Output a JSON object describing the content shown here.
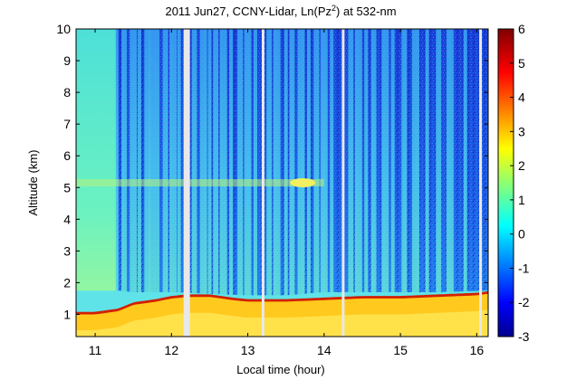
{
  "chart_data": {
    "type": "heatmap",
    "title": "2011 Jun27, CCNY-Lidar, Ln(Pz",
    "title_sup": "2",
    "title_end": ") at 532-nm",
    "xlabel": "Local time (hour)",
    "ylabel": "Altitude (km)",
    "xlim": [
      10.75,
      16.15
    ],
    "ylim": [
      0.3,
      10
    ],
    "xticks": [
      "11",
      "12",
      "13",
      "14",
      "15",
      "16"
    ],
    "yticks": [
      "1",
      "2",
      "3",
      "4",
      "5",
      "6",
      "7",
      "8",
      "9",
      "10"
    ],
    "colorbar": {
      "range": [
        -3,
        6
      ],
      "ticks": [
        "-3",
        "-2",
        "-1",
        "0",
        "1",
        "2",
        "3",
        "4",
        "5",
        "6"
      ],
      "colormap": "jet"
    },
    "boundary_layer_top_km": [
      [
        10.75,
        1.0
      ],
      [
        11.0,
        1.0
      ],
      [
        11.3,
        1.1
      ],
      [
        11.5,
        1.3
      ],
      [
        11.8,
        1.4
      ],
      [
        12.0,
        1.5
      ],
      [
        12.2,
        1.55
      ],
      [
        12.5,
        1.55
      ],
      [
        12.8,
        1.45
      ],
      [
        13.0,
        1.4
      ],
      [
        13.5,
        1.4
      ],
      [
        14.0,
        1.45
      ],
      [
        14.5,
        1.5
      ],
      [
        15.0,
        1.5
      ],
      [
        15.5,
        1.55
      ],
      [
        16.0,
        1.6
      ],
      [
        16.15,
        1.65
      ]
    ],
    "aerosol_layer_top_km": [
      [
        10.75,
        1.75
      ],
      [
        11.3,
        1.75
      ],
      [
        11.5,
        1.7
      ],
      [
        12.0,
        1.7
      ],
      [
        12.5,
        1.65
      ],
      [
        13.0,
        1.6
      ],
      [
        13.5,
        1.6
      ],
      [
        14.0,
        1.7
      ],
      [
        14.5,
        1.7
      ],
      [
        15.0,
        1.7
      ],
      [
        15.5,
        1.7
      ],
      [
        16.15,
        1.75
      ]
    ],
    "cloud_layer": {
      "altitude_km": 5.15,
      "time_range": [
        10.75,
        14.0
      ]
    },
    "gaps_hour": [
      12.2,
      13.2,
      14.25,
      16.05
    ],
    "columns_hour": [
      11.28,
      11.38,
      11.5,
      11.58,
      11.68,
      11.75,
      11.82,
      11.92,
      12.02,
      12.1,
      12.3,
      12.42,
      12.5,
      12.58,
      12.68,
      12.78,
      12.9,
      13.0,
      13.1,
      13.28,
      13.38,
      13.5,
      13.58,
      13.7,
      13.8,
      13.9,
      14.0,
      14.1,
      14.35,
      14.45,
      14.55,
      14.65,
      14.8,
      14.9,
      15.05,
      15.2,
      15.35,
      15.5,
      15.65,
      15.85
    ]
  }
}
